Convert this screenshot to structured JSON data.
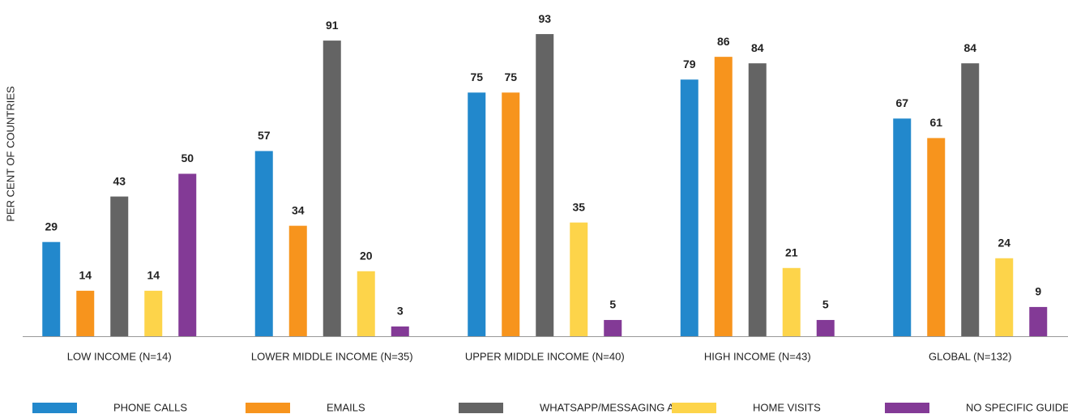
{
  "chart_data": {
    "type": "bar",
    "y_label": "PER CENT OF COUNTRIES",
    "categories": [
      "LOW INCOME (N=14)",
      "LOWER MIDDLE INCOME (N=35)",
      "UPPER MIDDLE INCOME (N=40)",
      "HIGH INCOME (N=43)",
      "GLOBAL (N=132)"
    ],
    "series": [
      {
        "name": "PHONE CALLS",
        "color": "#2288cc",
        "values": [
          29,
          57,
          75,
          79,
          67
        ]
      },
      {
        "name": "EMAILS",
        "color": "#f7941d",
        "values": [
          14,
          34,
          75,
          86,
          61
        ]
      },
      {
        "name": "WHATSAPP/MESSAGING APPS",
        "color": "#646464",
        "values": [
          43,
          91,
          93,
          84,
          84
        ]
      },
      {
        "name": "HOME VISITS",
        "color": "#fdd44a",
        "values": [
          14,
          20,
          35,
          21,
          24
        ]
      },
      {
        "name": "NO SPECIFIC GUIDELINES",
        "color": "#833a96",
        "values": [
          50,
          3,
          5,
          5,
          9
        ]
      }
    ],
    "ylim": [
      0,
      100
    ],
    "legend": "bottom"
  }
}
